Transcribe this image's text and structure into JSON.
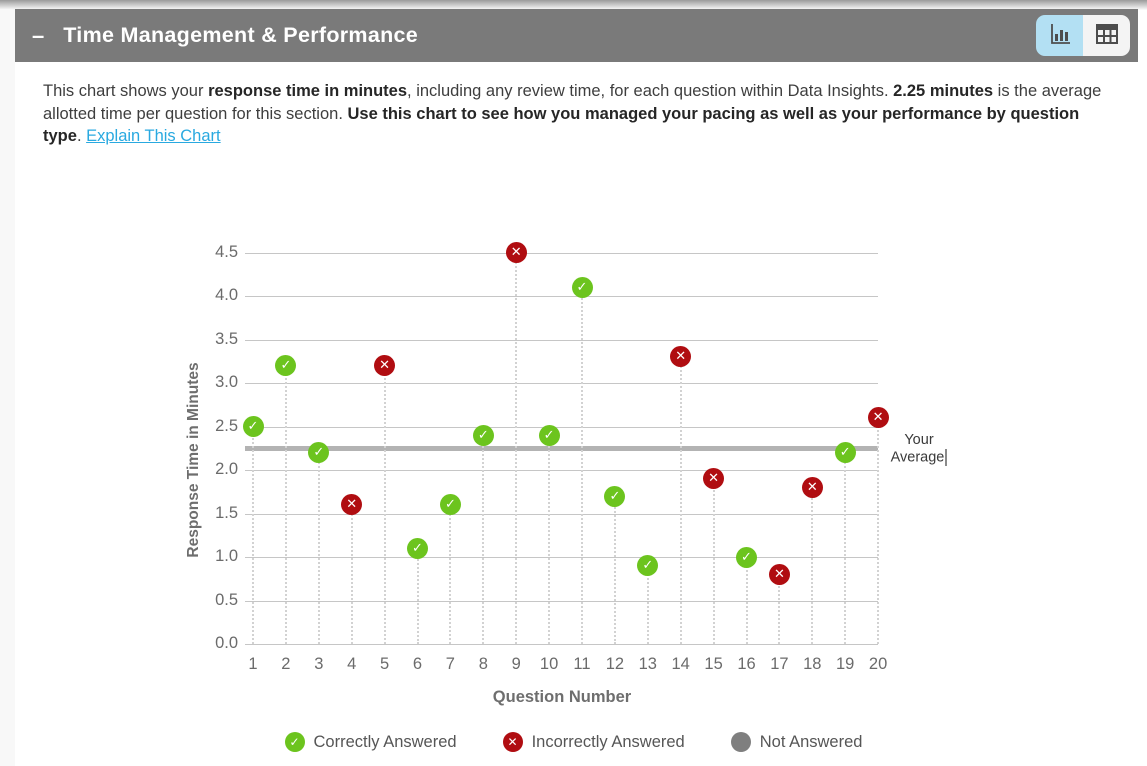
{
  "header": {
    "collapse_glyph": "–",
    "title": "Time Management & Performance",
    "view_toggle": {
      "active_view": "chart"
    }
  },
  "description": {
    "text_parts": [
      {
        "text": "This chart shows your ",
        "bold": false
      },
      {
        "text": "response time in minutes",
        "bold": true
      },
      {
        "text": ", including any review time, for each question within Data Insights. ",
        "bold": false
      },
      {
        "text": "2.25 minutes",
        "bold": true
      },
      {
        "text": " is the average allotted time per question for this section. ",
        "bold": false
      },
      {
        "text": "Use this chart to see how you managed your pacing as well as your performance by question type",
        "bold": true
      },
      {
        "text": ". ",
        "bold": false
      }
    ],
    "link_text": "Explain This Chart"
  },
  "chart_data": {
    "type": "scatter",
    "title": "",
    "xlabel": "Question Number",
    "ylabel": "Response Time in Minutes",
    "x": [
      1,
      2,
      3,
      4,
      5,
      6,
      7,
      8,
      9,
      10,
      11,
      12,
      13,
      14,
      15,
      16,
      17,
      18,
      19,
      20
    ],
    "ylim": [
      0,
      4.5
    ],
    "ytick_step": 0.5,
    "grid": true,
    "points": [
      {
        "q": 1,
        "minutes": 2.5,
        "status": "correct"
      },
      {
        "q": 2,
        "minutes": 3.2,
        "status": "correct"
      },
      {
        "q": 3,
        "minutes": 2.2,
        "status": "correct"
      },
      {
        "q": 4,
        "minutes": 1.6,
        "status": "incorrect"
      },
      {
        "q": 5,
        "minutes": 3.2,
        "status": "incorrect"
      },
      {
        "q": 6,
        "minutes": 1.1,
        "status": "correct"
      },
      {
        "q": 7,
        "minutes": 1.6,
        "status": "correct"
      },
      {
        "q": 8,
        "minutes": 2.4,
        "status": "correct"
      },
      {
        "q": 9,
        "minutes": 4.5,
        "status": "incorrect"
      },
      {
        "q": 10,
        "minutes": 2.4,
        "status": "correct"
      },
      {
        "q": 11,
        "minutes": 4.1,
        "status": "correct"
      },
      {
        "q": 12,
        "minutes": 1.7,
        "status": "correct"
      },
      {
        "q": 13,
        "minutes": 0.9,
        "status": "correct"
      },
      {
        "q": 14,
        "minutes": 3.3,
        "status": "incorrect"
      },
      {
        "q": 15,
        "minutes": 1.9,
        "status": "incorrect"
      },
      {
        "q": 16,
        "minutes": 1.0,
        "status": "correct"
      },
      {
        "q": 17,
        "minutes": 0.8,
        "status": "incorrect"
      },
      {
        "q": 18,
        "minutes": 1.8,
        "status": "incorrect"
      },
      {
        "q": 19,
        "minutes": 2.2,
        "status": "correct"
      },
      {
        "q": 20,
        "minutes": 2.6,
        "status": "incorrect"
      }
    ],
    "average": {
      "value": 2.25,
      "label_lines": [
        "Your",
        "Average"
      ]
    },
    "legend": [
      {
        "status": "correct",
        "label": "Correctly Answered"
      },
      {
        "status": "incorrect",
        "label": "Incorrectly Answered"
      },
      {
        "status": "not_answered",
        "label": "Not Answered"
      }
    ],
    "glyphs": {
      "correct": "✓",
      "incorrect": "✕",
      "not_answered": ""
    },
    "colors": {
      "correct": "#6cc41e",
      "incorrect": "#b00d11",
      "not_answered": "#7f7f7f",
      "average_line": "#b3b3b3",
      "gridline": "#c6c6c6",
      "link": "#29a9e0",
      "header_bg": "#7a7a7a",
      "toggle_active_bg": "#b3e0f3"
    }
  }
}
